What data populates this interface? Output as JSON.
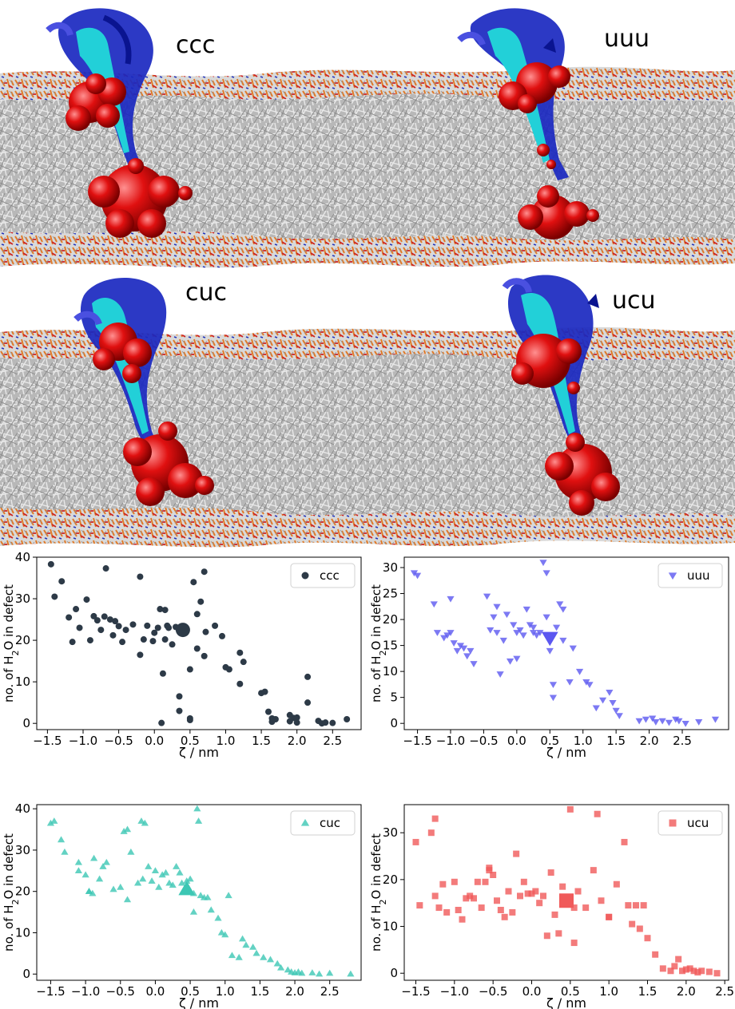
{
  "renders": {
    "top": {
      "labels": [
        "ccc",
        "uuu"
      ]
    },
    "bottom": {
      "labels": [
        "cuc",
        "ucu"
      ]
    }
  },
  "colors": {
    "ccc": "#2d3a47",
    "uuu": "#5b57f0",
    "cuc": "#3cc7b4",
    "ucu": "#f05a5a",
    "protein_dark": "#1020b0",
    "protein_light": "#22d0d8",
    "water": "#dd0e0e",
    "lipid_grey": "#bdbdbd",
    "lipid_head_orange": "#e07a28",
    "lipid_head_red": "#cc2222"
  },
  "chart_data": [
    {
      "type": "scatter",
      "marker": "circle",
      "legend": "ccc",
      "legend_position": "top-right",
      "xlabel": "ζ / nm",
      "ylabel": "no. of H2O in defect",
      "xlim": [
        -1.65,
        2.9
      ],
      "ylim": [
        -1.5,
        40
      ],
      "xticks": [
        -1.5,
        -1.0,
        -0.5,
        0.0,
        0.5,
        1.0,
        1.5,
        2.0,
        2.5
      ],
      "yticks": [
        0,
        10,
        20,
        30,
        40
      ],
      "mean": {
        "x": 0.4,
        "y": 22.5
      },
      "x": [
        -1.45,
        -1.4,
        -1.3,
        -1.15,
        -1.1,
        -1.05,
        -0.95,
        -0.9,
        -0.85,
        -0.8,
        -0.75,
        -0.7,
        -0.68,
        -0.62,
        -0.58,
        -0.5,
        -0.45,
        -0.4,
        -0.3,
        -0.2,
        -0.15,
        -0.1,
        -0.02,
        0.0,
        0.05,
        0.08,
        0.12,
        0.15,
        0.18,
        0.25,
        0.3,
        0.35,
        0.5,
        0.55,
        0.6,
        0.65,
        0.7,
        0.72,
        0.85,
        0.95,
        1.0,
        1.05,
        1.2,
        1.2,
        1.25,
        1.5,
        1.55,
        1.6,
        1.65,
        1.7,
        1.9,
        1.95,
        2.0,
        2.15,
        2.15,
        2.3,
        2.35,
        2.4,
        2.5,
        2.7,
        -0.2,
        0.1,
        0.15,
        0.2,
        0.35,
        0.5,
        0.6,
        0.7,
        -1.2,
        -0.55,
        1.65,
        1.9,
        2.0,
        0.5
      ],
      "y": [
        38.3,
        30.5,
        34.2,
        19.6,
        27.5,
        23.0,
        29.8,
        20.0,
        25.8,
        24.8,
        22.5,
        25.7,
        37.3,
        25.0,
        21.2,
        23.4,
        19.6,
        22.5,
        23.8,
        35.3,
        20.2,
        23.5,
        19.8,
        21.8,
        23.0,
        27.5,
        12.0,
        20.2,
        23.5,
        19.0,
        23.2,
        6.5,
        13.0,
        34.0,
        18.0,
        29.3,
        36.5,
        22.0,
        23.5,
        21.0,
        13.5,
        13.0,
        17.0,
        9.5,
        14.8,
        7.3,
        7.6,
        2.8,
        1.2,
        1.0,
        2.0,
        1.3,
        1.4,
        11.2,
        5.0,
        0.6,
        0.0,
        0.2,
        0.1,
        1.0,
        16.5,
        0.1,
        27.3,
        23.0,
        3.0,
        0.8,
        26.3,
        16.2,
        25.5,
        24.6,
        0.4,
        0.5,
        0.2,
        1.2
      ]
    },
    {
      "type": "scatter",
      "marker": "triangle-down",
      "legend": "uuu",
      "legend_position": "top-right",
      "xlabel": "ζ / nm",
      "ylabel": "no. of H2O in defect",
      "xlim": [
        -1.7,
        3.2
      ],
      "ylim": [
        -1.2,
        32
      ],
      "xticks": [
        -1.5,
        -1.0,
        -0.5,
        0.0,
        0.5,
        1.0,
        1.5,
        2.0,
        2.5
      ],
      "yticks": [
        0,
        5,
        10,
        15,
        20,
        25,
        30
      ],
      "mean": {
        "x": 0.5,
        "y": 16.5
      },
      "x": [
        -1.55,
        -1.5,
        -1.25,
        -1.2,
        -1.1,
        -1.05,
        -1.0,
        -0.95,
        -0.9,
        -0.85,
        -0.8,
        -0.75,
        -0.7,
        -0.65,
        -0.35,
        -0.3,
        -0.25,
        -0.2,
        -0.15,
        -0.1,
        -0.05,
        0.0,
        0.05,
        0.1,
        0.15,
        0.2,
        0.25,
        0.3,
        0.35,
        0.4,
        0.45,
        0.5,
        0.55,
        0.6,
        0.65,
        0.7,
        0.8,
        0.85,
        0.95,
        1.05,
        1.1,
        1.2,
        1.3,
        1.4,
        1.45,
        1.5,
        1.55,
        1.85,
        1.95,
        2.05,
        2.1,
        2.2,
        2.3,
        2.45,
        2.55,
        2.75,
        3.0,
        -0.45,
        -0.3,
        0.45,
        0.55,
        0.7,
        -0.4,
        0.25,
        0.0,
        -1.0,
        2.4
      ],
      "y": [
        29.0,
        28.5,
        23.0,
        17.5,
        16.5,
        17.0,
        24.0,
        15.5,
        14.0,
        15.0,
        14.5,
        13.0,
        14.0,
        11.5,
        20.5,
        17.5,
        9.5,
        16.0,
        21.0,
        12.0,
        19.0,
        17.5,
        18.0,
        17.0,
        22.0,
        19.0,
        18.5,
        17.0,
        17.5,
        31.0,
        20.5,
        14.0,
        5.0,
        18.5,
        23.0,
        22.0,
        8.0,
        14.5,
        10.0,
        8.0,
        7.5,
        3.0,
        4.5,
        6.0,
        4.0,
        2.5,
        1.5,
        0.5,
        0.8,
        1.0,
        0.3,
        0.5,
        0.2,
        0.5,
        0.0,
        0.3,
        0.8,
        24.5,
        22.5,
        29.0,
        7.5,
        16.0,
        18.0,
        17.5,
        12.5,
        17.5,
        0.8
      ]
    },
    {
      "type": "scatter",
      "marker": "triangle-up",
      "legend": "cuc",
      "legend_position": "top-right",
      "xlabel": "ζ / nm",
      "ylabel": "no. of H2O in defect",
      "xlim": [
        -1.7,
        2.95
      ],
      "ylim": [
        -1.5,
        41
      ],
      "xticks": [
        -1.5,
        -1.0,
        -0.5,
        0.0,
        0.5,
        1.0,
        1.5,
        2.0,
        2.5
      ],
      "yticks": [
        0,
        10,
        20,
        30,
        40
      ],
      "mean": {
        "x": 0.45,
        "y": 20.5
      },
      "x": [
        -1.5,
        -1.45,
        -1.35,
        -1.3,
        -1.1,
        -1.0,
        -0.95,
        -0.9,
        -0.88,
        -0.8,
        -0.75,
        -0.7,
        -0.6,
        -0.5,
        -0.45,
        -0.4,
        -0.35,
        -0.25,
        -0.2,
        -0.15,
        -0.1,
        -0.05,
        0.0,
        0.05,
        0.1,
        0.15,
        0.2,
        0.25,
        0.3,
        0.35,
        0.45,
        0.5,
        0.55,
        0.6,
        0.62,
        0.65,
        0.7,
        0.75,
        0.8,
        0.9,
        0.95,
        1.0,
        1.05,
        1.1,
        1.2,
        1.25,
        1.3,
        1.4,
        1.45,
        1.55,
        1.65,
        1.75,
        1.8,
        1.9,
        1.95,
        2.0,
        2.05,
        2.1,
        2.25,
        2.35,
        2.5,
        2.8,
        -0.18,
        -0.4,
        0.38,
        -0.95,
        -1.1,
        0.55
      ],
      "y": [
        36.5,
        37.0,
        32.5,
        29.5,
        27.0,
        24.0,
        20.0,
        19.5,
        28.0,
        23.0,
        26.0,
        27.0,
        20.5,
        21.0,
        34.5,
        35.0,
        29.5,
        22.0,
        37.0,
        36.5,
        26.0,
        22.5,
        25.0,
        21.0,
        24.0,
        24.5,
        22.0,
        21.5,
        26.0,
        24.5,
        22.5,
        23.0,
        19.5,
        40.0,
        37.0,
        19.0,
        18.5,
        18.5,
        15.5,
        13.5,
        10.0,
        9.5,
        19.0,
        4.5,
        4.0,
        8.5,
        7.0,
        6.5,
        5.0,
        4.0,
        3.5,
        2.5,
        1.5,
        1.0,
        0.5,
        0.3,
        0.5,
        0.2,
        0.3,
        0.0,
        0.2,
        0.0,
        23.0,
        18.0,
        22.0,
        20.0,
        25.0,
        15.0
      ]
    },
    {
      "type": "scatter",
      "marker": "square",
      "legend": "ucu",
      "legend_position": "top-right",
      "xlabel": "ζ / nm",
      "ylabel": "no. of H2O in defect",
      "xlim": [
        -1.65,
        2.55
      ],
      "ylim": [
        -1.5,
        36
      ],
      "xticks": [
        -1.5,
        -1.0,
        -0.5,
        0.0,
        0.5,
        1.0,
        1.5,
        2.0,
        2.5
      ],
      "yticks": [
        0,
        10,
        20,
        30
      ],
      "mean": {
        "x": 0.45,
        "y": 15.5
      },
      "x": [
        -1.5,
        -1.45,
        -1.3,
        -1.25,
        -1.2,
        -1.15,
        -1.1,
        -1.0,
        -0.95,
        -0.9,
        -0.85,
        -0.8,
        -0.75,
        -0.7,
        -0.65,
        -0.6,
        -0.55,
        -0.5,
        -0.45,
        -0.4,
        -0.35,
        -0.3,
        -0.25,
        -0.2,
        -0.15,
        -0.1,
        -0.05,
        0.0,
        0.05,
        0.1,
        0.15,
        0.2,
        0.25,
        0.3,
        0.35,
        0.4,
        0.5,
        0.55,
        0.6,
        0.7,
        0.8,
        0.85,
        0.9,
        1.0,
        1.1,
        1.2,
        1.25,
        1.3,
        1.35,
        1.4,
        1.45,
        1.5,
        1.6,
        1.7,
        1.8,
        1.85,
        1.9,
        1.95,
        2.0,
        2.05,
        2.1,
        2.15,
        2.2,
        2.3,
        2.4,
        -1.25,
        -0.55,
        0.4,
        0.55,
        1.0
      ],
      "y": [
        28.0,
        14.5,
        30.0,
        33.0,
        14.0,
        19.0,
        13.0,
        19.5,
        13.5,
        11.5,
        16.0,
        16.5,
        16.0,
        19.5,
        14.0,
        19.5,
        22.5,
        21.0,
        15.5,
        13.5,
        12.0,
        17.5,
        13.0,
        25.5,
        16.5,
        19.5,
        17.0,
        17.0,
        17.5,
        15.0,
        16.5,
        8.0,
        21.5,
        12.5,
        8.5,
        18.5,
        35.0,
        6.5,
        17.5,
        14.0,
        22.0,
        34.0,
        15.5,
        12.0,
        19.0,
        28.0,
        14.5,
        10.5,
        14.5,
        9.5,
        14.5,
        7.5,
        4.0,
        1.0,
        0.5,
        1.5,
        3.0,
        0.5,
        0.8,
        1.0,
        0.5,
        0.2,
        0.5,
        0.3,
        0.0,
        16.5,
        22.0,
        15.0,
        14.0,
        12.0
      ]
    }
  ]
}
